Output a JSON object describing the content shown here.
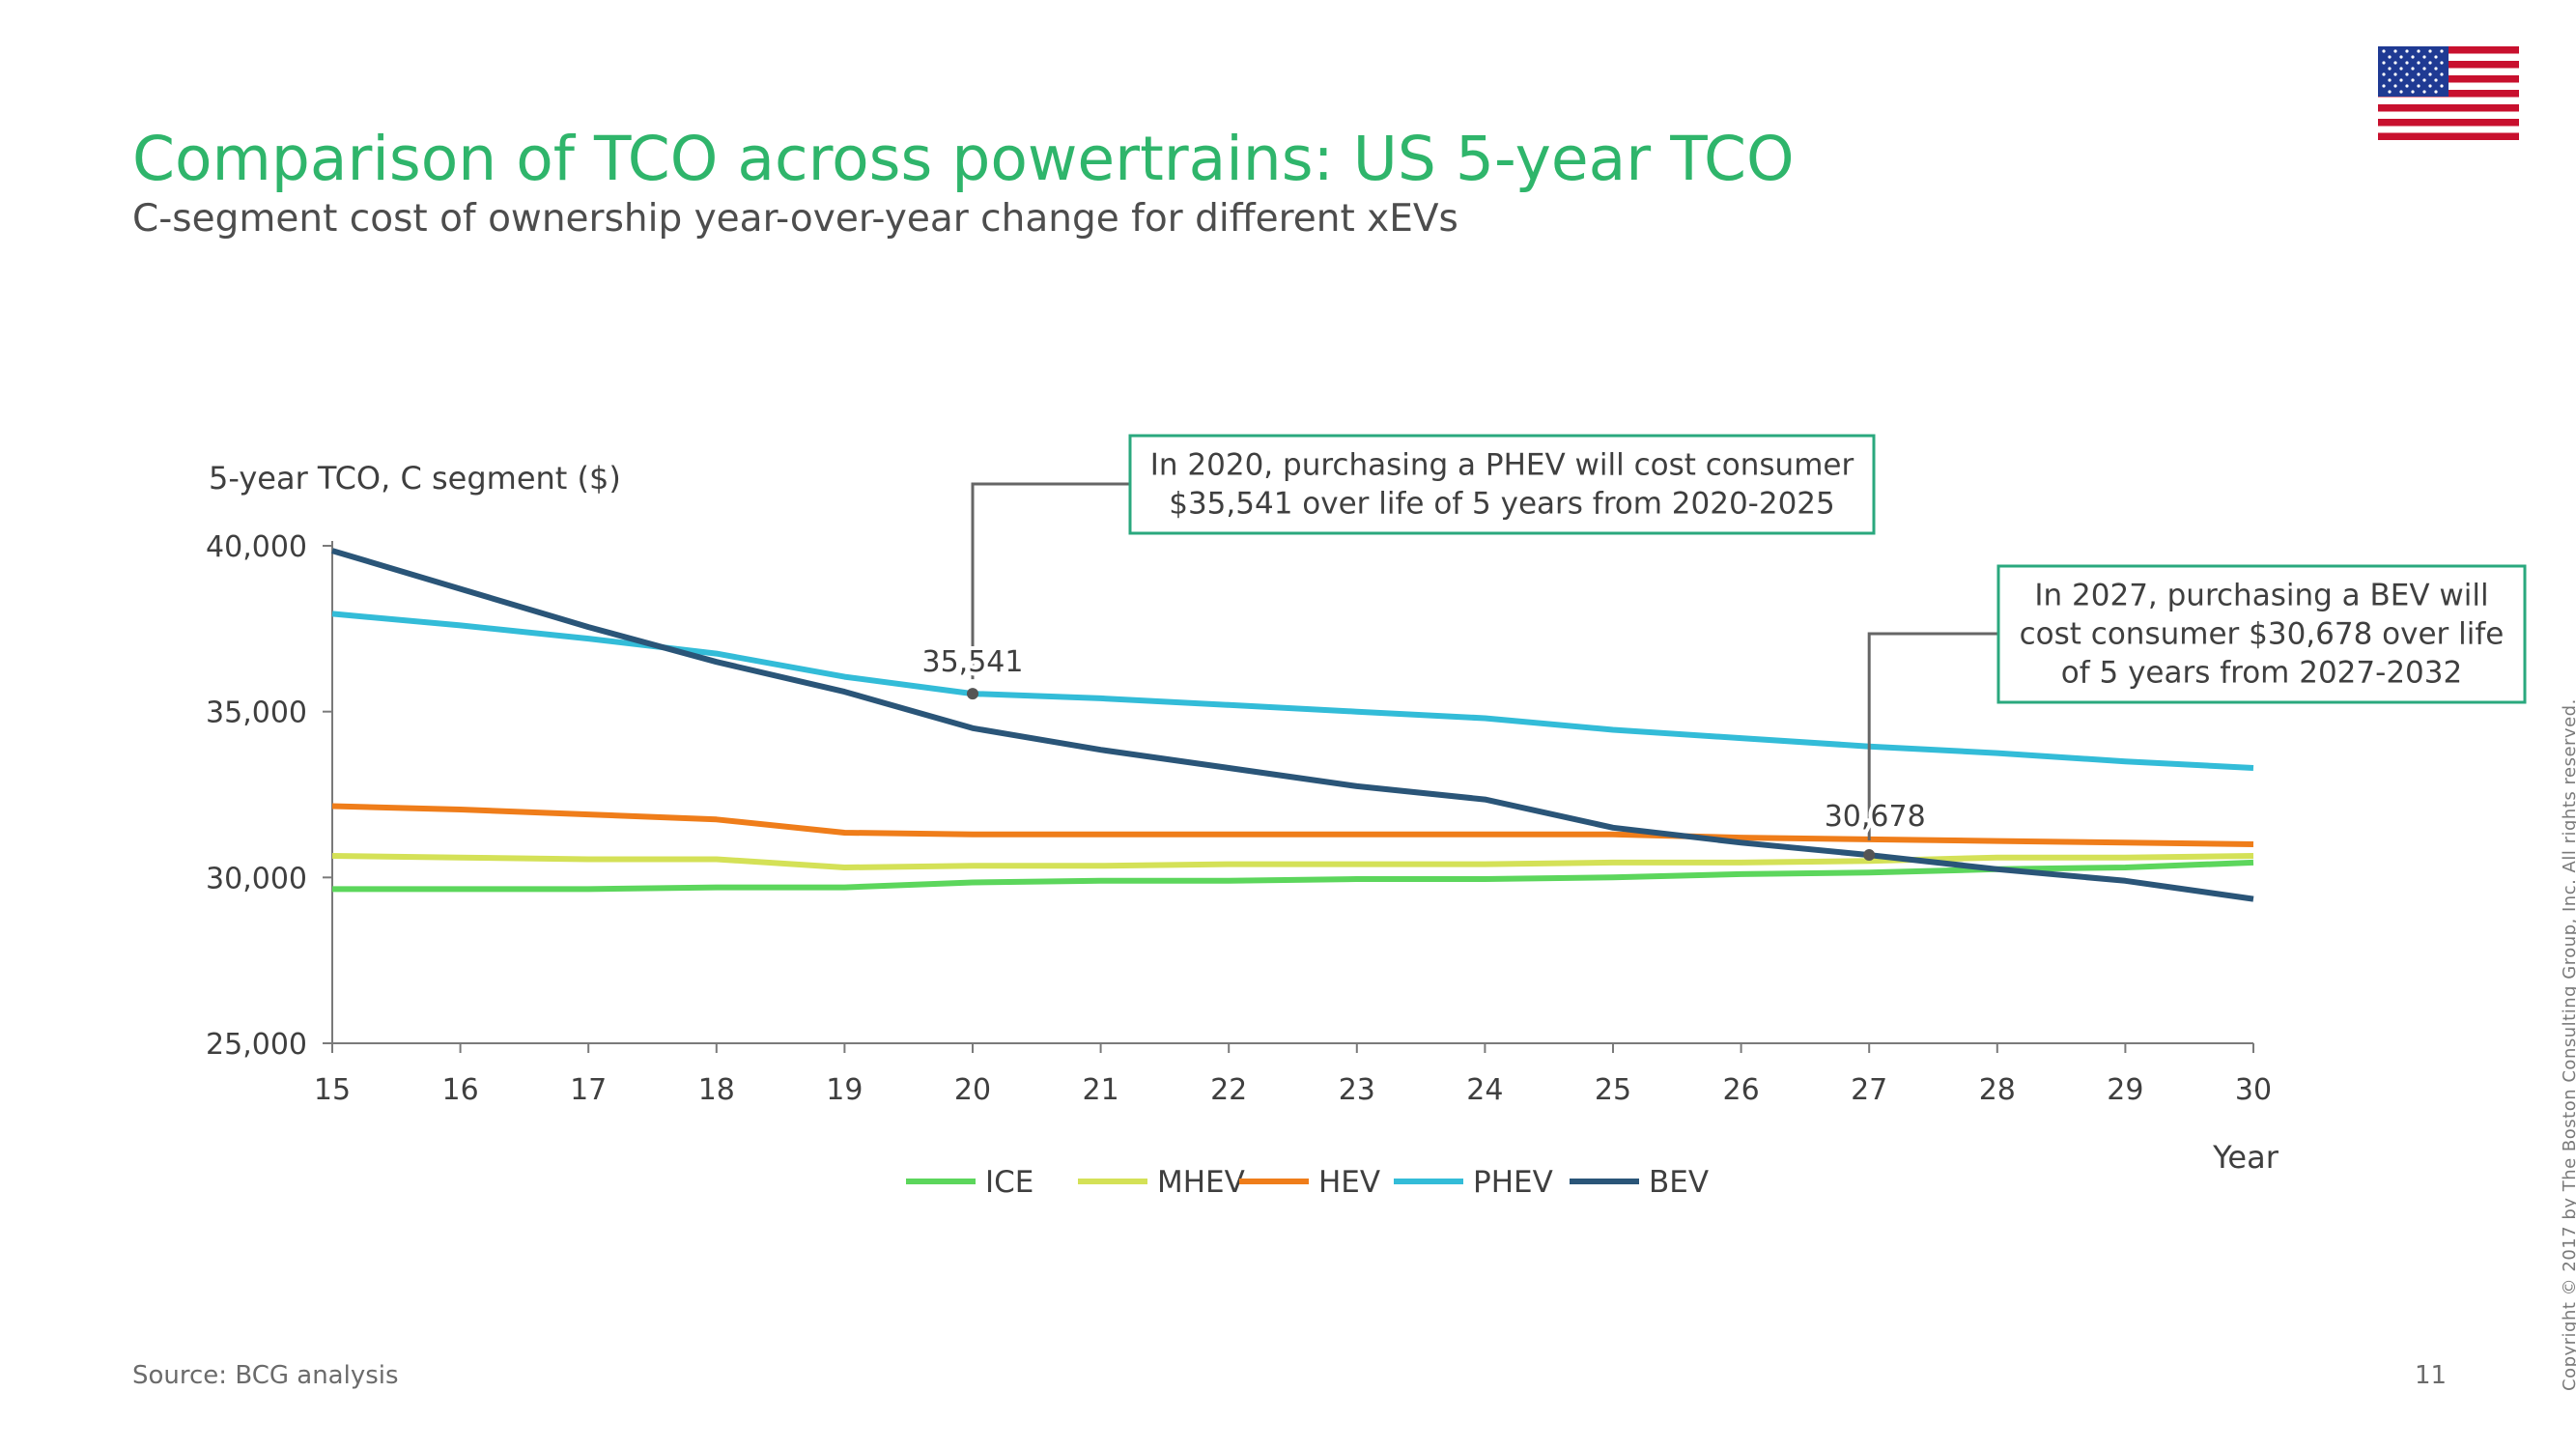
{
  "header": {
    "title": "Comparison of TCO across powertrains: US 5-year TCO",
    "subtitle": "C-segment cost of ownership year-over-year change for different xEVs"
  },
  "footer": {
    "source": "Source: BCG analysis",
    "page_number": "11",
    "copyright": "Copyright © 2017 by The Boston Consulting Group, Inc. All rights reserved."
  },
  "flag_icon": "us-flag-icon",
  "chart_data": {
    "type": "line",
    "ylabel": "5-year TCO, C segment ($)",
    "xlabel": "Year",
    "x": [
      15,
      16,
      17,
      18,
      19,
      20,
      21,
      22,
      23,
      24,
      25,
      26,
      27,
      28,
      29,
      30
    ],
    "xlim": [
      15,
      30
    ],
    "ylim": [
      25000,
      40000
    ],
    "yticks": [
      25000,
      30000,
      35000,
      40000
    ],
    "ytick_labels": [
      "25,000",
      "30,000",
      "35,000",
      "40,000"
    ],
    "grid": false,
    "legend_position": "bottom",
    "series": [
      {
        "name": "ICE",
        "color": "#5cd65c",
        "values": [
          29650,
          29650,
          29650,
          29700,
          29700,
          29850,
          29900,
          29900,
          29950,
          29950,
          30000,
          30100,
          30150,
          30250,
          30300,
          30450
        ]
      },
      {
        "name": "MHEV",
        "color": "#d4e157",
        "values": [
          30650,
          30600,
          30550,
          30550,
          30300,
          30350,
          30350,
          30400,
          30400,
          30400,
          30450,
          30450,
          30500,
          30600,
          30600,
          30650
        ]
      },
      {
        "name": "HEV",
        "color": "#ef7d1a",
        "values": [
          32150,
          32050,
          31900,
          31750,
          31350,
          31300,
          31300,
          31300,
          31300,
          31300,
          31300,
          31200,
          31150,
          31100,
          31050,
          31000
        ]
      },
      {
        "name": "PHEV",
        "color": "#33bcd8",
        "values": [
          37950,
          37600,
          37200,
          36750,
          36050,
          35541,
          35400,
          35200,
          35000,
          34800,
          34450,
          34200,
          33950,
          33750,
          33500,
          33300
        ]
      },
      {
        "name": "BEV",
        "color": "#2a5578",
        "values": [
          39850,
          38700,
          37550,
          36500,
          35600,
          34500,
          33850,
          33300,
          32750,
          32350,
          31500,
          31050,
          30678,
          30250,
          29900,
          29350
        ]
      }
    ],
    "annotations": [
      {
        "series": "PHEV",
        "x": 20,
        "value_label": "35,541",
        "lines": [
          "In 2020, purchasing a PHEV will cost consumer",
          "$35,541 over life of 5 years from 2020-2025"
        ]
      },
      {
        "series": "BEV",
        "x": 27,
        "value_label": "30,678",
        "lines": [
          "In 2027, purchasing a BEV will",
          "cost consumer $30,678 over life",
          "of 5 years from 2027-2032"
        ]
      }
    ],
    "axis_color": "#7a7a7a",
    "callout_border_color": "#2aa87e"
  }
}
